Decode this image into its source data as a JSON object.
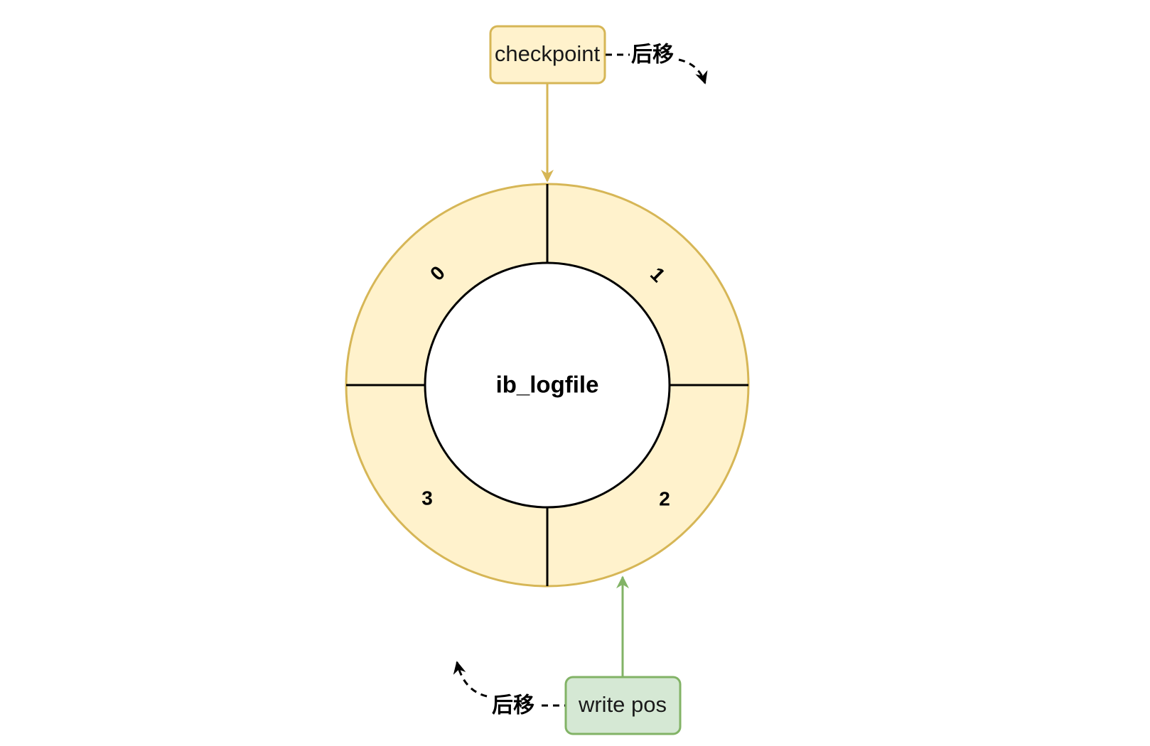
{
  "diagram": {
    "center_label": "ib_logfile",
    "segments": [
      {
        "label": "0"
      },
      {
        "label": "1"
      },
      {
        "label": "2"
      },
      {
        "label": "3"
      }
    ],
    "checkpoint": {
      "label": "checkpoint",
      "move_label": "后移"
    },
    "write_pos": {
      "label": "write pos",
      "move_label": "后移"
    }
  },
  "colors": {
    "ring_fill": "#fff2cc",
    "ring_stroke": "#d6b656",
    "checkpoint_fill": "#fff2cc",
    "checkpoint_stroke": "#d6b656",
    "checkpoint_arrow": "#d6b656",
    "writepos_fill": "#d5e8d4",
    "writepos_stroke": "#82b366",
    "writepos_arrow": "#82b366",
    "divider": "#000000"
  },
  "icons": {
    "checkpoint_arrow": "arrow-down-icon",
    "writepos_arrow": "arrow-up-icon",
    "checkpoint_curve": "curved-arrow-clockwise-icon",
    "writepos_curve": "curved-arrow-clockwise-icon"
  }
}
